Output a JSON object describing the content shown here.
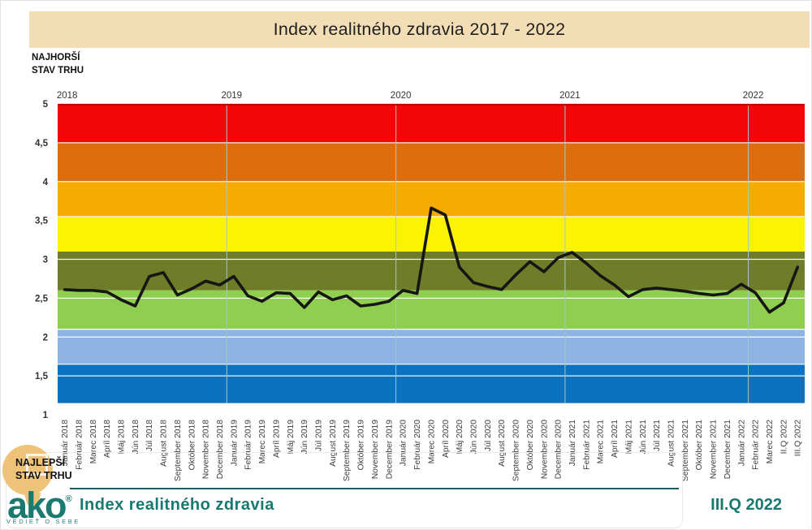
{
  "header": {
    "title": "Index realitného zdravia 2017 - 2022"
  },
  "labels": {
    "worst": {
      "line1": "NAJHORŠÍ",
      "line2": "STAV TRHU"
    },
    "best": {
      "line1": "NAJLEPŠÍ",
      "line2": "STAV TRHU"
    }
  },
  "footer": {
    "brand": "ako",
    "reg": "®",
    "tagline": "VEDIEŤ O SEBE",
    "chart_name": "Index realitného zdravia",
    "period": "III.Q 2022"
  },
  "colors": {
    "banner_bg": "#f3ddb5",
    "brand_teal": "#17796f",
    "rule_teal": "#1e5964",
    "logo_tan": "#eec379",
    "line_black": "#161616"
  },
  "chart_data": {
    "type": "line",
    "title": "Index realitného zdravia 2017 - 2022",
    "xlabel": "",
    "ylabel": "",
    "ylim": [
      1,
      5
    ],
    "grid": "horizontal-white",
    "legend": "none",
    "line_color": "#161616",
    "top_border_color": "#c40000",
    "vgrid_color": "#a5c8c6",
    "y_ticks": [
      "5",
      "4,5",
      "4",
      "3,5",
      "3",
      "2,5",
      "2",
      "1,5",
      "1"
    ],
    "y_tick_values": [
      5,
      4.5,
      4,
      3.5,
      3,
      2.5,
      2,
      1.5,
      1
    ],
    "h_gridline_values": [
      4.5,
      4.0,
      3.55,
      3.0,
      2.5,
      2.1,
      2.0,
      1.65,
      1.5
    ],
    "year_labels": [
      "2018",
      "2019",
      "2020",
      "2021",
      "2022"
    ],
    "year_gridline_cols": [
      12,
      24,
      36,
      49
    ],
    "bands": [
      {
        "from": 5.0,
        "to": 4.5,
        "color": "#f40606",
        "meaning": "najhorší stav trhu"
      },
      {
        "from": 4.5,
        "to": 4.0,
        "color": "#dc6e0e"
      },
      {
        "from": 4.0,
        "to": 3.55,
        "color": "#f4ac00"
      },
      {
        "from": 3.55,
        "to": 3.1,
        "color": "#fbf303"
      },
      {
        "from": 3.1,
        "to": 2.6,
        "color": "#6f7c28"
      },
      {
        "from": 2.6,
        "to": 2.1,
        "color": "#8fce4e"
      },
      {
        "from": 2.1,
        "to": 1.65,
        "color": "#8db4e2"
      },
      {
        "from": 1.65,
        "to": 1.15,
        "color": "#0b72c1",
        "meaning": "najlepší stav trhu"
      }
    ],
    "categories": [
      "Január 2018",
      "Február 2018",
      "Marec 2018",
      "Apríl 2018",
      "Máj 2018",
      "Jún 2018",
      "Júl 2018",
      "August 2018",
      "September 2018",
      "Október 2018",
      "November 2018",
      "December 2018",
      "Január 2019",
      "Február 2019",
      "Marec 2019",
      "Apríl 2019",
      "Máj 2019",
      "Jún 2019",
      "Júl 2019",
      "August 2019",
      "September 2019",
      "Október 2019",
      "November 2019",
      "December 2019",
      "Január 2020",
      "Február 2020",
      "Marec 2020",
      "Apríl 2020",
      "Máj 2020",
      "Jún 2020",
      "Júl 2020",
      "August 2020",
      "September 2020",
      "Október 2020",
      "November 2020",
      "December 2020",
      "Január 2021",
      "Február 2021",
      "Marec 2021",
      "Apríl 2021",
      "Máj 2021",
      "Jún 2021",
      "Júl 2021",
      "August 2021",
      "September 2021",
      "Október 2021",
      "November 2021",
      "December 2021",
      "Január 2022",
      "Február 2022",
      "Marec 2022",
      "II.Q 2022",
      "III.Q 2022"
    ],
    "values": [
      2.61,
      2.6,
      2.6,
      2.58,
      2.48,
      2.4,
      2.78,
      2.83,
      2.54,
      2.62,
      2.72,
      2.67,
      2.78,
      2.53,
      2.46,
      2.57,
      2.56,
      2.38,
      2.58,
      2.48,
      2.53,
      2.4,
      2.42,
      2.46,
      2.6,
      2.56,
      3.66,
      3.57,
      2.9,
      2.7,
      2.65,
      2.61,
      2.8,
      2.97,
      2.84,
      3.02,
      3.09,
      2.95,
      2.79,
      2.67,
      2.52,
      2.61,
      2.63,
      2.61,
      2.59,
      2.56,
      2.54,
      2.56,
      2.68,
      2.57,
      2.32,
      2.44,
      2.9
    ]
  }
}
